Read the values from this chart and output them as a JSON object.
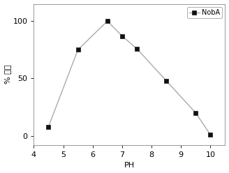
{
  "x": [
    4.5,
    5.5,
    6.5,
    7.0,
    7.5,
    8.5,
    9.5,
    10.0
  ],
  "y": [
    8,
    75,
    100,
    87,
    76,
    48,
    20,
    1
  ],
  "xlim": [
    4,
    10.5
  ],
  "ylim": [
    -8,
    115
  ],
  "xticks": [
    4,
    5,
    6,
    7,
    8,
    9,
    10
  ],
  "yticks": [
    0,
    50,
    100
  ],
  "xlabel": "PH",
  "ylabel": "% 活性",
  "legend_label": "NobA",
  "line_color": "#aaaaaa",
  "marker_color": "#111111",
  "marker": "s",
  "marker_size": 5,
  "line_style": "-",
  "line_width": 1.0,
  "background_color": "#ffffff",
  "font_size": 8,
  "tick_font_size": 8
}
